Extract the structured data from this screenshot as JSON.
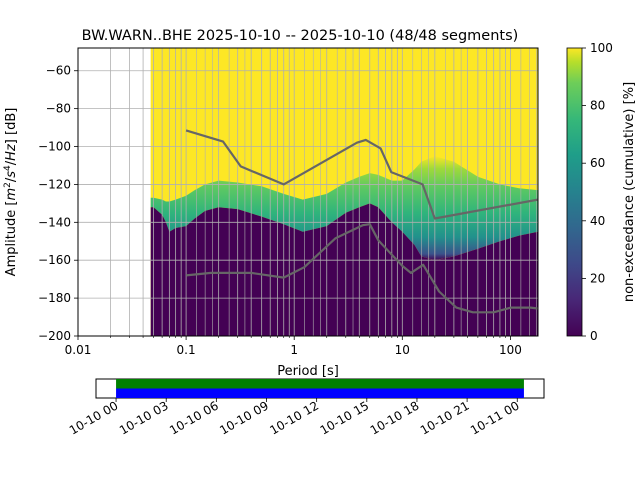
{
  "chart_data": [
    {
      "type": "heatmap",
      "title": "BW.WARN..BHE   2025-10-10 -- 2025-10-10  (48/48 segments)",
      "xlabel": "Period [s]",
      "ylabel_parts": [
        "Amplitude [",
        "m",
        "2",
        "/",
        "s",
        "4",
        "/",
        "Hz",
        "] [dB]"
      ],
      "xscale": "log",
      "xlim": [
        0.01,
        180
      ],
      "ylim": [
        -200,
        -48
      ],
      "x_ticks": [
        {
          "value": 0.01,
          "label": "0.01"
        },
        {
          "value": 0.1,
          "label": "0.1"
        },
        {
          "value": 1,
          "label": "1"
        },
        {
          "value": 10,
          "label": "10"
        },
        {
          "value": 100,
          "label": "100"
        }
      ],
      "y_ticks": [
        {
          "value": -60,
          "label": "−60"
        },
        {
          "value": -80,
          "label": "−80"
        },
        {
          "value": -100,
          "label": "−100"
        },
        {
          "value": -120,
          "label": "−120"
        },
        {
          "value": -140,
          "label": "−140"
        },
        {
          "value": -160,
          "label": "−160"
        },
        {
          "value": -180,
          "label": "−180"
        },
        {
          "value": -200,
          "label": "−200"
        }
      ],
      "grid": true,
      "data_period_start": 0.047,
      "heatmap_columns": {
        "period": [
          0.047,
          0.05,
          0.06,
          0.065,
          0.07,
          0.08,
          0.1,
          0.12,
          0.15,
          0.2,
          0.3,
          0.5,
          0.8,
          1.2,
          2,
          3,
          4,
          5,
          6,
          8,
          10,
          13,
          15,
          20,
          30,
          50,
          80,
          120,
          180
        ],
        "lower_edge_db": [
          -132,
          -132,
          -136,
          -140,
          -145,
          -143,
          -142,
          -138,
          -134,
          -132,
          -133,
          -137,
          -141,
          -145,
          -142,
          -135,
          -132,
          -130,
          -132,
          -140,
          -145,
          -152,
          -158,
          -160,
          -158,
          -154,
          -150,
          -147,
          -145
        ],
        "upper_edge_db": [
          -127,
          -127,
          -128,
          -129,
          -129,
          -128,
          -126,
          -123,
          -120,
          -118,
          -119,
          -121,
          -125,
          -128,
          -125,
          -119,
          -116,
          -114,
          -115,
          -118,
          -118,
          -112,
          -108,
          -105,
          -108,
          -116,
          -120,
          -122,
          -123
        ]
      },
      "colorbar": {
        "label": "non-exceedance (cumulative) [%]",
        "min": 0,
        "max": 100,
        "colormap": "viridis",
        "ticks": [
          0,
          20,
          40,
          60,
          80,
          100
        ]
      },
      "series": [
        {
          "role": "high-noise model",
          "color": "#666666",
          "points": [
            [
              0.1,
              -91.5
            ],
            [
              0.22,
              -97.4
            ],
            [
              0.32,
              -110.5
            ],
            [
              0.8,
              -120
            ],
            [
              3.8,
              -98
            ],
            [
              4.6,
              -96.5
            ],
            [
              6.3,
              -101
            ],
            [
              7.9,
              -113.5
            ],
            [
              15.4,
              -120
            ],
            [
              20,
              -138
            ],
            [
              180,
              -128
            ]
          ]
        },
        {
          "role": "low-noise model",
          "color": "#666666",
          "points": [
            [
              0.1,
              -168
            ],
            [
              0.17,
              -166.7
            ],
            [
              0.4,
              -166.7
            ],
            [
              0.8,
              -169.2
            ],
            [
              1.24,
              -163.7
            ],
            [
              2.4,
              -148.5
            ],
            [
              4.3,
              -141.5
            ],
            [
              5,
              -141
            ],
            [
              6,
              -149.5
            ],
            [
              10,
              -163
            ],
            [
              12,
              -166.7
            ],
            [
              15.6,
              -162.4
            ],
            [
              21.9,
              -176.5
            ],
            [
              31.6,
              -185
            ],
            [
              45,
              -187.5
            ],
            [
              70,
              -187.5
            ],
            [
              101,
              -185
            ],
            [
              154,
              -185
            ],
            [
              180,
              -185.5
            ]
          ]
        }
      ]
    },
    {
      "type": "timeline",
      "tick_labels": [
        "10-10 00",
        "10-10 03",
        "10-10 06",
        "10-10 09",
        "10-10 12",
        "10-10 15",
        "10-10 18",
        "10-10 21",
        "10-11 00"
      ],
      "tick_hours": [
        0,
        3,
        6,
        9,
        12,
        15,
        18,
        21,
        24
      ],
      "xlim_hours": [
        -1.2,
        25.6
      ],
      "coverage_hours": [
        0,
        24.4
      ],
      "bars": [
        {
          "name": "data",
          "color": "#008000"
        },
        {
          "name": "psd",
          "color": "#0000ff"
        }
      ]
    }
  ]
}
